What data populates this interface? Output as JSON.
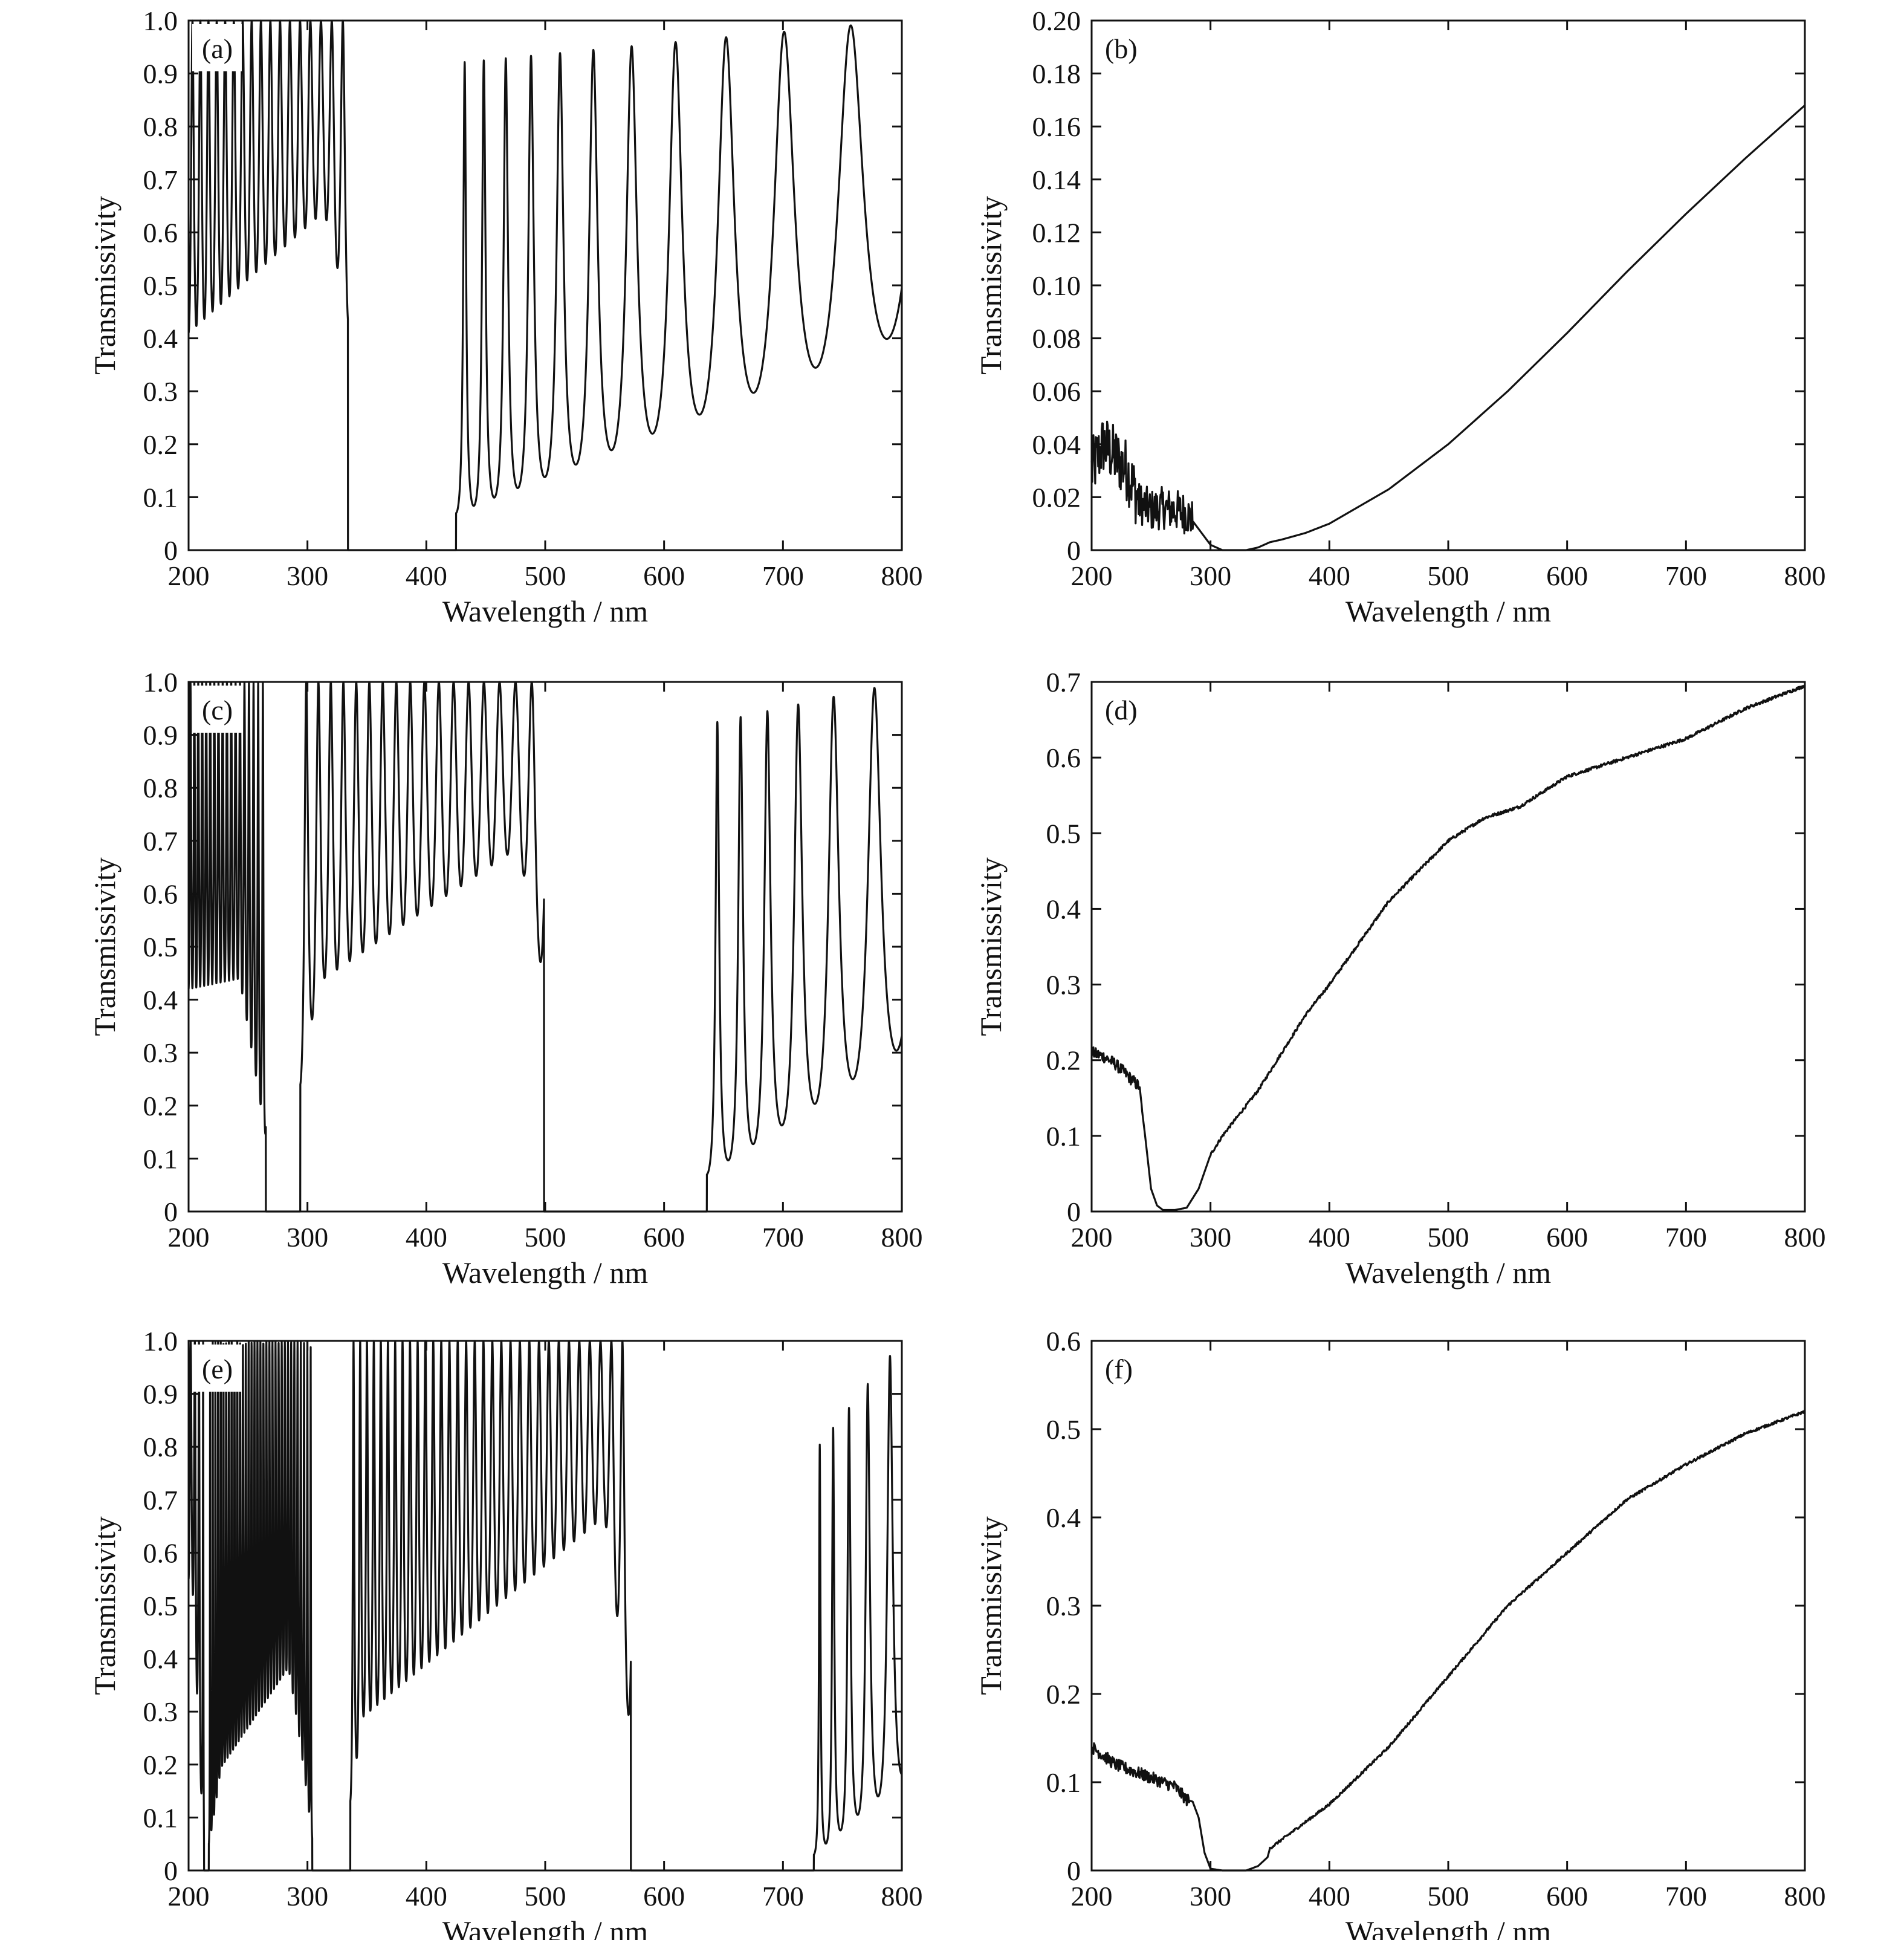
{
  "colors": {
    "line": "#111111",
    "frame": "#111111",
    "background": "#ffffff"
  },
  "chart_data": [
    {
      "panel": "(a)",
      "type": "line",
      "xlabel": "Wavelength / nm",
      "ylabel": "Transmissivity",
      "xlim": [
        200,
        800
      ],
      "ylim": [
        0,
        1.0
      ],
      "xticks": [
        "200",
        "300",
        "400",
        "500",
        "600",
        "700",
        "800"
      ],
      "yticks": [
        "0",
        "0.1",
        "0.2",
        "0.3",
        "0.4",
        "0.5",
        "0.6",
        "0.7",
        "0.8",
        "0.9",
        "1.0"
      ],
      "grid": false,
      "series": [
        {
          "segments": [
            {
              "x0": 200,
              "x1": 334,
              "period_start": 6.5,
              "period_end": 9.5,
              "min_start": 0.41,
              "min_end": 0.68,
              "max_start": 1.0,
              "max_end": 1.0,
              "edge_min_end": 0.43,
              "edge_width": 20
            },
            {
              "x0": 425,
              "x1": 800,
              "period_start": 14,
              "period_end": 66,
              "min_start": 0.07,
              "min_end": 0.41,
              "max_start": 0.92,
              "max_end": 1.0
            }
          ],
          "stopbands": [
            {
              "x0": 334,
              "x1": 425,
              "value": 0.0
            }
          ]
        }
      ]
    },
    {
      "panel": "(b)",
      "type": "line",
      "xlabel": "Wavelength / nm",
      "ylabel": "Transmissivity",
      "xlim": [
        200,
        800
      ],
      "ylim": [
        0,
        0.2
      ],
      "xticks": [
        "200",
        "300",
        "400",
        "500",
        "600",
        "700",
        "800"
      ],
      "yticks": [
        "0",
        "0.02",
        "0.04",
        "0.06",
        "0.08",
        "0.10",
        "0.12",
        "0.14",
        "0.16",
        "0.18",
        "0.20"
      ],
      "grid": false,
      "noise": [
        {
          "x0": 200,
          "x1": 240,
          "amp": 0.012
        },
        {
          "x0": 240,
          "x1": 285,
          "amp": 0.008
        }
      ],
      "series": [
        {
          "x": [
            200,
            210,
            220,
            230,
            240,
            250,
            260,
            270,
            280,
            290,
            300,
            310,
            320,
            330,
            340,
            350,
            360,
            380,
            400,
            450,
            500,
            550,
            600,
            650,
            700,
            750,
            800
          ],
          "y": [
            0.03,
            0.04,
            0.035,
            0.03,
            0.018,
            0.015,
            0.016,
            0.015,
            0.014,
            0.008,
            0.002,
            0.0,
            0.0,
            0.0,
            0.001,
            0.003,
            0.004,
            0.0065,
            0.01,
            0.023,
            0.04,
            0.06,
            0.082,
            0.105,
            0.127,
            0.148,
            0.168
          ]
        }
      ]
    },
    {
      "panel": "(c)",
      "type": "line",
      "xlabel": "Wavelength / nm",
      "ylabel": "Transmissivity",
      "xlim": [
        200,
        800
      ],
      "ylim": [
        0,
        1.0
      ],
      "xticks": [
        "200",
        "300",
        "400",
        "500",
        "600",
        "700",
        "800"
      ],
      "yticks": [
        "0",
        "0.1",
        "0.2",
        "0.3",
        "0.4",
        "0.5",
        "0.6",
        "0.7",
        "0.8",
        "0.9",
        "1.0"
      ],
      "grid": false,
      "series": [
        {
          "segments": [
            {
              "x0": 200,
              "x1": 265,
              "period_start": 3.2,
              "period_end": 4.0,
              "min_start": 0.42,
              "min_end": 0.45,
              "max_start": 1.0,
              "max_end": 1.0,
              "dip_center": 228,
              "dip_depth": 0.0,
              "edge_min_end": 0.14,
              "edge_width": 22
            },
            {
              "x0": 294,
              "x1": 499,
              "period_start": 10,
              "period_end": 14,
              "min_start": 0.41,
              "min_end": 0.72,
              "max_start": 1.0,
              "max_end": 1.0,
              "edge_min_start": 0.24,
              "edge_width_start": 15,
              "edge_min_end": 0.43,
              "edge_width": 22
            },
            {
              "x0": 636,
              "x1": 800,
              "period_start": 17,
              "period_end": 40,
              "min_start": 0.07,
              "min_end": 0.31,
              "max_start": 0.92,
              "max_end": 1.0
            }
          ],
          "stopbands": [
            {
              "x0": 265,
              "x1": 294,
              "value": 0.0
            },
            {
              "x0": 499,
              "x1": 636,
              "value": 0.0
            }
          ]
        }
      ]
    },
    {
      "panel": "(d)",
      "type": "line",
      "xlabel": "Wavelength / nm",
      "ylabel": "Transmissivity",
      "xlim": [
        200,
        800
      ],
      "ylim": [
        0,
        0.7
      ],
      "xticks": [
        "200",
        "300",
        "400",
        "500",
        "600",
        "700",
        "800"
      ],
      "yticks": [
        "0",
        "0.1",
        "0.2",
        "0.3",
        "0.4",
        "0.5",
        "0.6",
        "0.7"
      ],
      "grid": false,
      "noise": [
        {
          "x0": 200,
          "x1": 242,
          "amp": 0.008
        },
        {
          "x0": 300,
          "x1": 800,
          "amp": 0.002
        }
      ],
      "series": [
        {
          "x": [
            200,
            210,
            220,
            230,
            240,
            245,
            250,
            255,
            260,
            270,
            280,
            290,
            300,
            310,
            320,
            340,
            360,
            380,
            400,
            450,
            500,
            530,
            560,
            600,
            650,
            700,
            750,
            800
          ],
          "y": [
            0.21,
            0.205,
            0.195,
            0.18,
            0.165,
            0.1,
            0.03,
            0.008,
            0.002,
            0.002,
            0.005,
            0.03,
            0.075,
            0.1,
            0.12,
            0.16,
            0.21,
            0.26,
            0.3,
            0.41,
            0.49,
            0.52,
            0.535,
            0.575,
            0.6,
            0.625,
            0.665,
            0.695
          ]
        }
      ]
    },
    {
      "panel": "(e)",
      "type": "line",
      "xlabel": "Wavelength / nm",
      "ylabel": "Transmissivity",
      "xlim": [
        200,
        800
      ],
      "ylim": [
        0,
        1.0
      ],
      "xticks": [
        "200",
        "300",
        "400",
        "500",
        "600",
        "700",
        "800"
      ],
      "yticks": [
        "0",
        "0.1",
        "0.2",
        "0.3",
        "0.4",
        "0.5",
        "0.6",
        "0.7",
        "0.8",
        "0.9",
        "1.0"
      ],
      "grid": false,
      "series": [
        {
          "segments": [
            {
              "x0": 200,
              "x1": 213,
              "period_start": 3.5,
              "period_end": 3.5,
              "min_start": 0.55,
              "min_end": 0.55,
              "max_start": 1.0,
              "max_end": 1.0,
              "edge_min_end": 0.02,
              "edge_width": 10
            },
            {
              "x0": 217,
              "x1": 304,
              "period_start": 2.2,
              "period_end": 2.8,
              "min_start": 0.16,
              "min_end": 0.45,
              "max_start": 1.0,
              "max_end": 1.0,
              "dip_center": 258,
              "dip_depth": 0.0,
              "edge_min_start": 0.05,
              "edge_width_start": 10,
              "edge_min_end": 0.06,
              "edge_width": 20
            },
            {
              "x0": 336,
              "x1": 572,
              "period_start": 5.5,
              "period_end": 9.5,
              "min_start": 0.27,
              "min_end": 0.71,
              "max_start": 1.0,
              "max_end": 1.0,
              "edge_min_start": 0.13,
              "edge_width_start": 10,
              "edge_min_end": 0.25,
              "edge_width": 22
            },
            {
              "x0": 726,
              "x1": 800,
              "period_start": 9.5,
              "period_end": 22,
              "min_start": 0.03,
              "min_end": 0.18,
              "max_start": 0.79,
              "max_end": 1.0
            }
          ],
          "stopbands": [
            {
              "x0": 304,
              "x1": 336,
              "value": 0.0
            },
            {
              "x0": 572,
              "x1": 726,
              "value": 0.0
            }
          ]
        }
      ]
    },
    {
      "panel": "(f)",
      "type": "line",
      "xlabel": "Wavelength / nm",
      "ylabel": "Transmissivity",
      "xlim": [
        200,
        800
      ],
      "ylim": [
        0,
        0.6
      ],
      "xticks": [
        "200",
        "300",
        "400",
        "500",
        "600",
        "700",
        "800"
      ],
      "yticks": [
        "0",
        "0.1",
        "0.2",
        "0.3",
        "0.4",
        "0.5",
        "0.6"
      ],
      "grid": false,
      "noise": [
        {
          "x0": 200,
          "x1": 282,
          "amp": 0.007
        },
        {
          "x0": 350,
          "x1": 800,
          "amp": 0.0015
        }
      ],
      "series": [
        {
          "x": [
            200,
            210,
            220,
            230,
            240,
            250,
            260,
            270,
            280,
            285,
            290,
            295,
            300,
            310,
            320,
            330,
            340,
            348,
            350,
            360,
            380,
            400,
            450,
            500,
            550,
            600,
            650,
            700,
            750,
            800
          ],
          "y": [
            0.14,
            0.13,
            0.12,
            0.115,
            0.11,
            0.105,
            0.1,
            0.095,
            0.08,
            0.078,
            0.06,
            0.02,
            0.002,
            0.0,
            0.0,
            0.0,
            0.005,
            0.015,
            0.025,
            0.035,
            0.055,
            0.075,
            0.14,
            0.22,
            0.3,
            0.36,
            0.42,
            0.46,
            0.495,
            0.52
          ]
        }
      ]
    }
  ]
}
